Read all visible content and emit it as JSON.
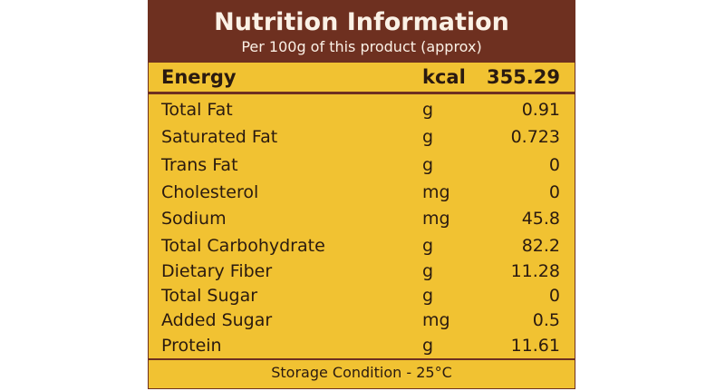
{
  "header": {
    "title": "Nutrition Information",
    "subtitle": "Per 100g of this product (approx)"
  },
  "table": {
    "rows": [
      [
        "Energy",
        "kcal",
        355.29
      ],
      [
        "Total Fat",
        "g",
        0.91
      ],
      [
        "Saturated Fat",
        "g",
        0.723
      ],
      [
        "Trans Fat",
        "g",
        0
      ],
      [
        "Cholesterol",
        "mg",
        0
      ],
      [
        "Sodium",
        "mg",
        45.8
      ],
      [
        "Total Carbohydrate",
        "g",
        82.2
      ],
      [
        "Dietary Fiber",
        "g",
        11.28
      ],
      [
        "Total Sugar",
        "g",
        0
      ],
      [
        "Added Sugar",
        "mg",
        0.5
      ],
      [
        "Protein",
        "g",
        11.61
      ]
    ]
  },
  "footer": {
    "text": "Storage Condition - 25°C"
  }
}
